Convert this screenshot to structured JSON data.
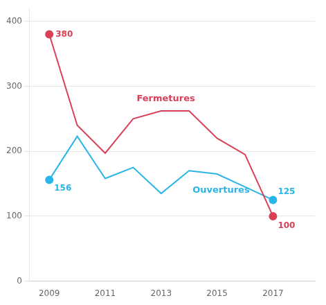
{
  "chart_data": {
    "type": "line",
    "x": [
      2009,
      2010,
      2011,
      2012,
      2013,
      2014,
      2015,
      2016,
      2017
    ],
    "series": [
      {
        "name": "Fermetures",
        "color": "#d94057",
        "marker": "circle",
        "values": [
          380,
          240,
          197,
          250,
          262,
          262,
          220,
          195,
          100
        ]
      },
      {
        "name": "Ouvertures",
        "color": "#29b5e8",
        "marker": "circle",
        "values": [
          156,
          223,
          158,
          175,
          135,
          170,
          165,
          145,
          125
        ]
      }
    ],
    "annotations": [
      {
        "text": "380",
        "x": 2009,
        "y": 380,
        "color": "#d94057"
      },
      {
        "text": "100",
        "x": 2017,
        "y": 100,
        "color": "#d94057"
      },
      {
        "text": "156",
        "x": 2009,
        "y": 156,
        "color": "#29b5e8"
      },
      {
        "text": "125",
        "x": 2017,
        "y": 125,
        "color": "#29b5e8"
      }
    ],
    "xlim": [
      2008.3,
      2018.5
    ],
    "xticks": [
      2009,
      2011,
      2013,
      2015,
      2017
    ],
    "ylim": [
      0,
      420
    ],
    "yticks": [
      0,
      100,
      200,
      300,
      400
    ],
    "grid": "y"
  }
}
